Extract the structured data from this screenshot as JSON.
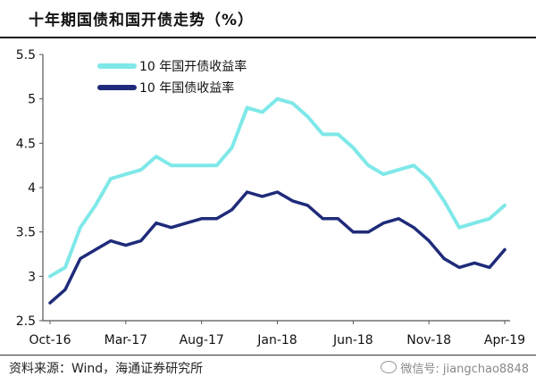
{
  "title": "十年期国债和国开债走势（%）",
  "source": "资料来源：Wind，海通证券研究所",
  "watermark": "微信号: jiangchao8848",
  "chart_data": {
    "type": "line",
    "ylim": [
      2.5,
      5.5
    ],
    "y_ticks": [
      "2.5",
      "3",
      "3.5",
      "4",
      "4.5",
      "5",
      "5.5"
    ],
    "x_ticks": [
      "Oct-16",
      "Mar-17",
      "Aug-17",
      "Jan-18",
      "Jun-18",
      "Nov-18",
      "Apr-19"
    ],
    "legend_position": "top-left",
    "grid": false,
    "series": [
      {
        "name": "10 年国开债收益率",
        "color": "#7fe8e8",
        "points": [
          [
            "2016-10",
            3.0
          ],
          [
            "2016-11",
            3.1
          ],
          [
            "2016-12",
            3.55
          ],
          [
            "2017-01",
            3.8
          ],
          [
            "2017-02",
            4.1
          ],
          [
            "2017-03",
            4.15
          ],
          [
            "2017-04",
            4.2
          ],
          [
            "2017-05",
            4.35
          ],
          [
            "2017-06",
            4.25
          ],
          [
            "2017-07",
            4.25
          ],
          [
            "2017-08",
            4.25
          ],
          [
            "2017-09",
            4.25
          ],
          [
            "2017-10",
            4.45
          ],
          [
            "2017-11",
            4.9
          ],
          [
            "2017-12",
            4.85
          ],
          [
            "2018-01",
            5.0
          ],
          [
            "2018-02",
            4.95
          ],
          [
            "2018-03",
            4.8
          ],
          [
            "2018-04",
            4.6
          ],
          [
            "2018-05",
            4.6
          ],
          [
            "2018-06",
            4.45
          ],
          [
            "2018-07",
            4.25
          ],
          [
            "2018-08",
            4.15
          ],
          [
            "2018-09",
            4.2
          ],
          [
            "2018-10",
            4.25
          ],
          [
            "2018-11",
            4.1
          ],
          [
            "2018-12",
            3.85
          ],
          [
            "2019-01",
            3.55
          ],
          [
            "2019-02",
            3.6
          ],
          [
            "2019-03",
            3.65
          ],
          [
            "2019-04",
            3.8
          ]
        ]
      },
      {
        "name": "10 年国债收益率",
        "color": "#1f2b7a",
        "points": [
          [
            "2016-10",
            2.7
          ],
          [
            "2016-11",
            2.85
          ],
          [
            "2016-12",
            3.2
          ],
          [
            "2017-01",
            3.3
          ],
          [
            "2017-02",
            3.4
          ],
          [
            "2017-03",
            3.35
          ],
          [
            "2017-04",
            3.4
          ],
          [
            "2017-05",
            3.6
          ],
          [
            "2017-06",
            3.55
          ],
          [
            "2017-07",
            3.6
          ],
          [
            "2017-08",
            3.65
          ],
          [
            "2017-09",
            3.65
          ],
          [
            "2017-10",
            3.75
          ],
          [
            "2017-11",
            3.95
          ],
          [
            "2017-12",
            3.9
          ],
          [
            "2018-01",
            3.95
          ],
          [
            "2018-02",
            3.85
          ],
          [
            "2018-03",
            3.8
          ],
          [
            "2018-04",
            3.65
          ],
          [
            "2018-05",
            3.65
          ],
          [
            "2018-06",
            3.5
          ],
          [
            "2018-07",
            3.5
          ],
          [
            "2018-08",
            3.6
          ],
          [
            "2018-09",
            3.65
          ],
          [
            "2018-10",
            3.55
          ],
          [
            "2018-11",
            3.4
          ],
          [
            "2018-12",
            3.2
          ],
          [
            "2019-01",
            3.1
          ],
          [
            "2019-02",
            3.15
          ],
          [
            "2019-03",
            3.1
          ],
          [
            "2019-04",
            3.3
          ]
        ]
      }
    ]
  }
}
